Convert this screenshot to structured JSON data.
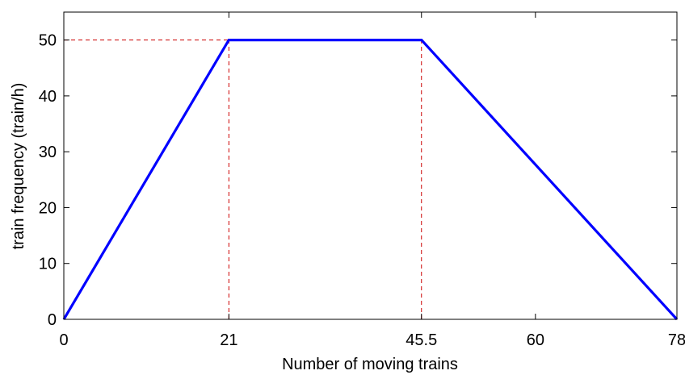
{
  "chart_data": {
    "type": "line",
    "xlabel": "Number of moving trains",
    "ylabel": "train frequency (train/h)",
    "xlim": [
      0,
      78
    ],
    "ylim": [
      0,
      55
    ],
    "xticks": [
      0,
      21,
      45.5,
      60,
      78
    ],
    "xtick_labels": [
      "0",
      "21",
      "45.5",
      "60",
      "78"
    ],
    "yticks": [
      0,
      10,
      20,
      30,
      40,
      50
    ],
    "ytick_labels": [
      "0",
      "10",
      "20",
      "30",
      "40",
      "50"
    ],
    "grid": false,
    "series": [
      {
        "color": "#0000ff",
        "x": [
          0,
          21,
          45.5,
          78
        ],
        "y": [
          0,
          50,
          50,
          0
        ]
      }
    ],
    "reference_lines": {
      "color": "#cc0000",
      "style": "dashed",
      "horizontal": [
        {
          "y": 50,
          "x_from": 0,
          "x_to": 21
        }
      ],
      "vertical": [
        {
          "x": 21,
          "y_from": 0,
          "y_to": 50
        },
        {
          "x": 45.5,
          "y_from": 0,
          "y_to": 50
        }
      ]
    }
  }
}
